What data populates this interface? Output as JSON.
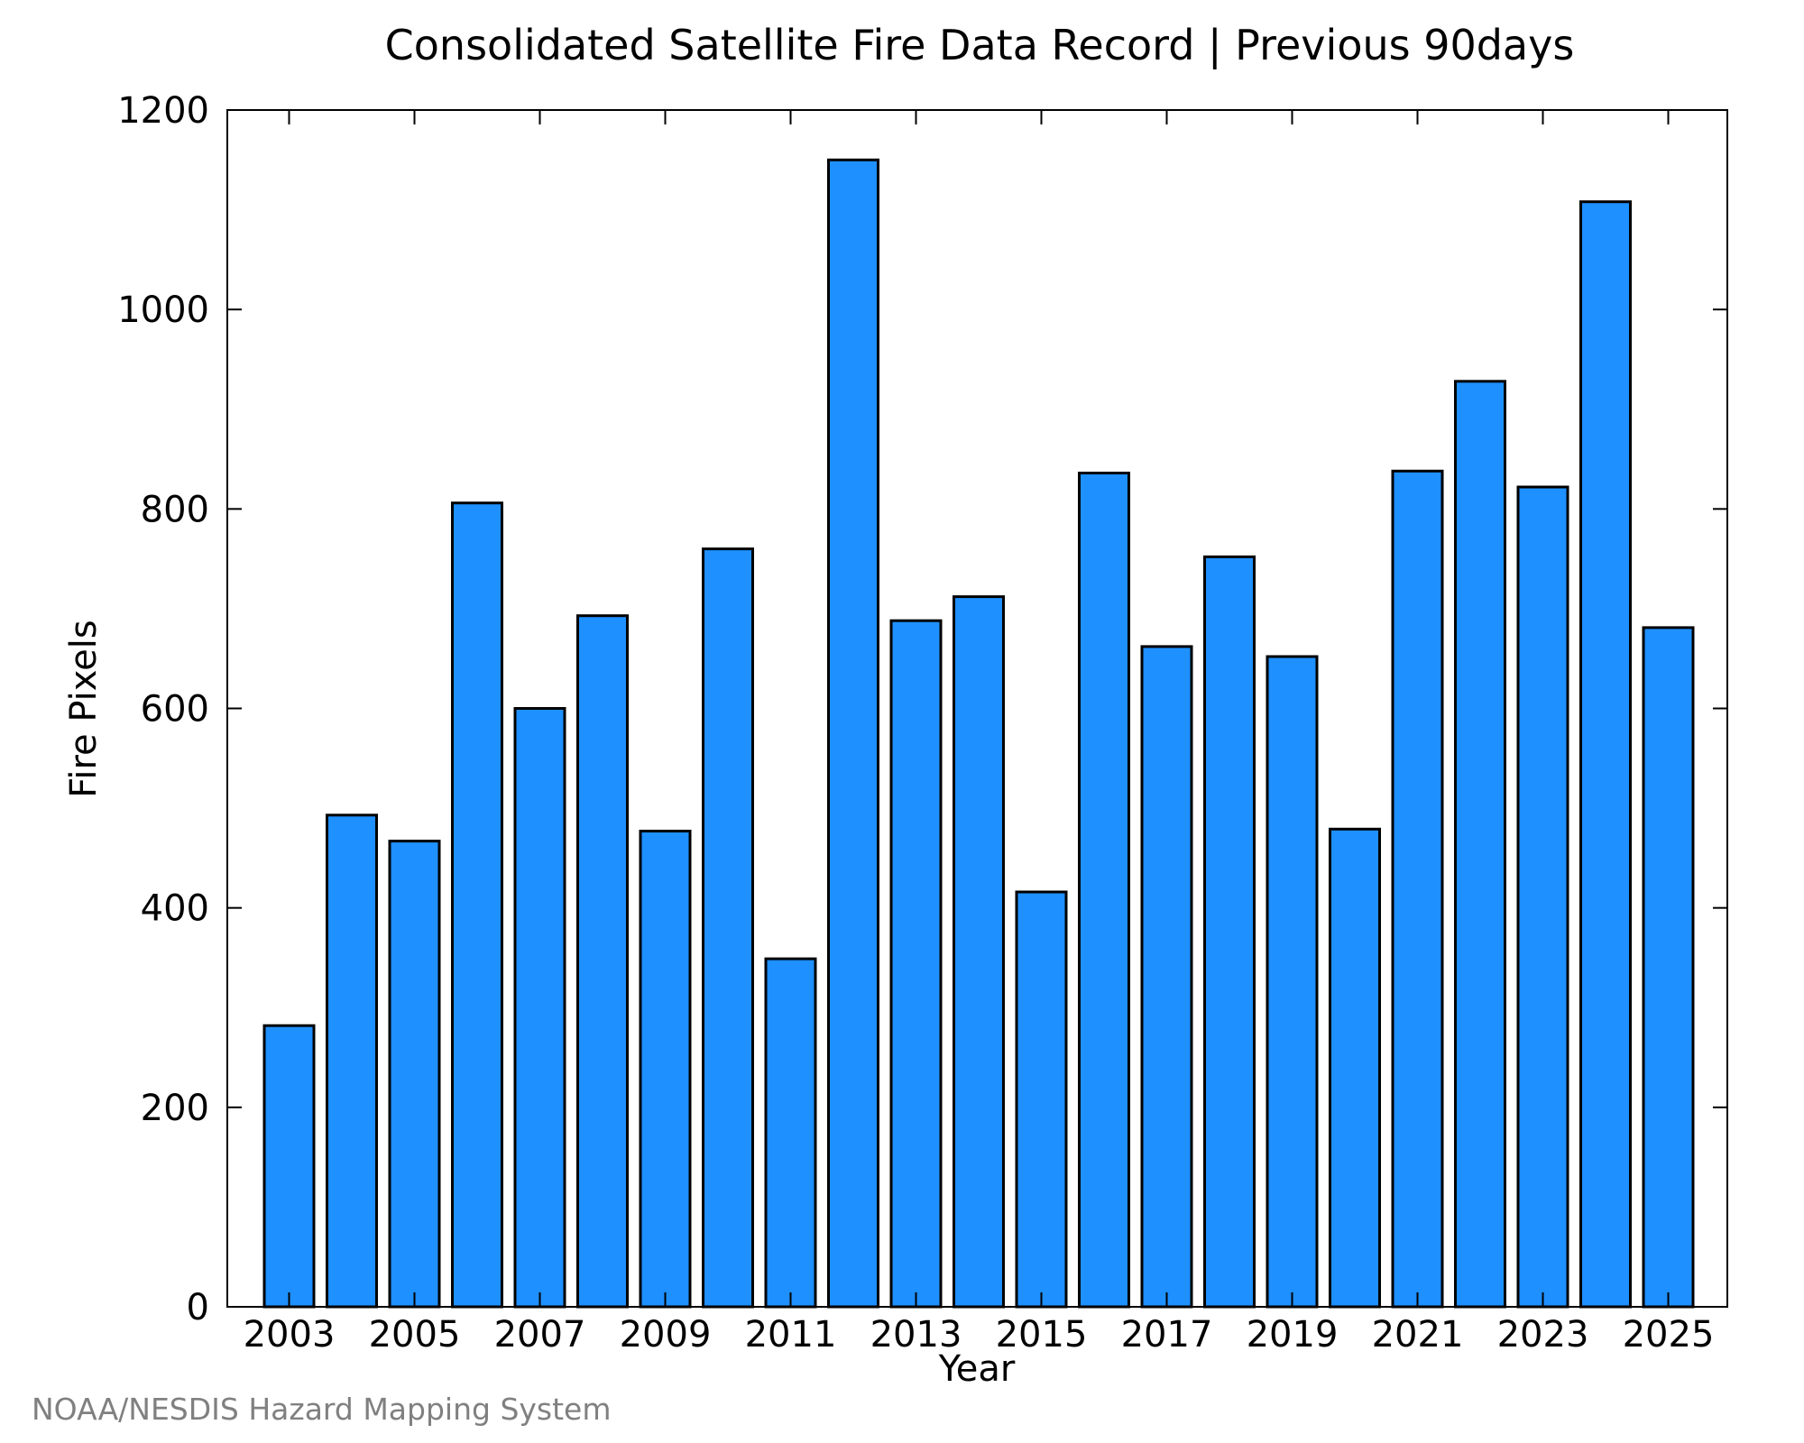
{
  "chart_data": {
    "type": "bar",
    "title": "Consolidated Satellite Fire Data Record | Previous 90days",
    "xlabel": "Year",
    "ylabel": "Fire Pixels",
    "ylim": [
      0,
      1200
    ],
    "yticks": [
      0,
      200,
      400,
      600,
      800,
      1000,
      1200
    ],
    "ytick_labels": [
      "0",
      "200",
      "400",
      "600",
      "800",
      "1000",
      "1200"
    ],
    "xticks": [
      "2003",
      "2005",
      "2007",
      "2009",
      "2011",
      "2013",
      "2015",
      "2017",
      "2019",
      "2021",
      "2023",
      "2025"
    ],
    "categories": [
      "2003",
      "2004",
      "2005",
      "2006",
      "2007",
      "2008",
      "2009",
      "2010",
      "2011",
      "2012",
      "2013",
      "2014",
      "2015",
      "2016",
      "2017",
      "2018",
      "2019",
      "2020",
      "2021",
      "2022",
      "2023",
      "2024",
      "2025"
    ],
    "values": [
      282,
      493,
      467,
      806,
      600,
      693,
      477,
      760,
      349,
      1150,
      688,
      712,
      416,
      836,
      662,
      752,
      652,
      479,
      838,
      928,
      822,
      1108,
      681
    ],
    "grid": false,
    "legend": "none",
    "bar_color": "#1E90FF",
    "bar_edge_color": "#000000"
  },
  "footer": {
    "credit": "NOAA/NESDIS Hazard Mapping System"
  }
}
